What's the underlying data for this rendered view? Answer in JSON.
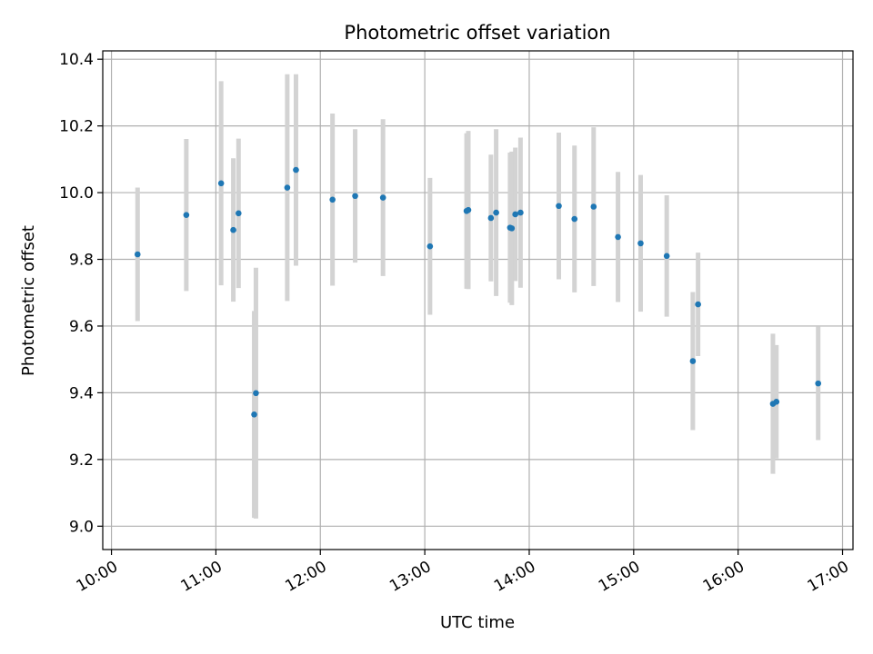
{
  "chart_data": {
    "type": "scatter",
    "title": "Photometric offset variation",
    "xlabel": "UTC time",
    "ylabel": "Photometric offset",
    "x_ticks": [
      "10:00",
      "11:00",
      "12:00",
      "13:00",
      "14:00",
      "15:00",
      "16:00",
      "17:00"
    ],
    "y_ticks": [
      "9.0",
      "9.2",
      "9.4",
      "9.6",
      "9.8",
      "10.0",
      "10.2",
      "10.4"
    ],
    "xlim": [
      "09:55",
      "17:06"
    ],
    "ylim": [
      8.93,
      10.425
    ],
    "grid": true,
    "marker_color": "#1f77b4",
    "errorbar_color": "#d3d3d3",
    "points": [
      {
        "x": "10:15",
        "y": 9.815,
        "yerr": 0.2
      },
      {
        "x": "10:43",
        "y": 9.933,
        "yerr": 0.228
      },
      {
        "x": "11:03",
        "y": 10.028,
        "yerr": 0.306
      },
      {
        "x": "11:10",
        "y": 9.888,
        "yerr": 0.215
      },
      {
        "x": "11:13",
        "y": 9.938,
        "yerr": 0.224
      },
      {
        "x": "11:22",
        "y": 9.335,
        "yerr": 0.31
      },
      {
        "x": "11:23",
        "y": 9.399,
        "yerr": 0.376
      },
      {
        "x": "11:41",
        "y": 10.015,
        "yerr": 0.34
      },
      {
        "x": "11:46",
        "y": 10.068,
        "yerr": 0.287
      },
      {
        "x": "12:07",
        "y": 9.979,
        "yerr": 0.258
      },
      {
        "x": "12:20",
        "y": 9.99,
        "yerr": 0.2
      },
      {
        "x": "12:36",
        "y": 9.985,
        "yerr": 0.235
      },
      {
        "x": "13:03",
        "y": 9.839,
        "yerr": 0.205
      },
      {
        "x": "13:24",
        "y": 9.945,
        "yerr": 0.233
      },
      {
        "x": "13:25",
        "y": 9.948,
        "yerr": 0.237
      },
      {
        "x": "13:38",
        "y": 9.924,
        "yerr": 0.19
      },
      {
        "x": "13:41",
        "y": 9.94,
        "yerr": 0.25
      },
      {
        "x": "13:49",
        "y": 9.895,
        "yerr": 0.225
      },
      {
        "x": "13:50",
        "y": 9.893,
        "yerr": 0.23
      },
      {
        "x": "13:52",
        "y": 9.935,
        "yerr": 0.2
      },
      {
        "x": "13:55",
        "y": 9.94,
        "yerr": 0.225
      },
      {
        "x": "14:17",
        "y": 9.96,
        "yerr": 0.22
      },
      {
        "x": "14:26",
        "y": 9.921,
        "yerr": 0.22
      },
      {
        "x": "14:37",
        "y": 9.958,
        "yerr": 0.238
      },
      {
        "x": "14:51",
        "y": 9.867,
        "yerr": 0.195
      },
      {
        "x": "15:04",
        "y": 9.848,
        "yerr": 0.205
      },
      {
        "x": "15:19",
        "y": 9.81,
        "yerr": 0.182
      },
      {
        "x": "15:34",
        "y": 9.495,
        "yerr": 0.207
      },
      {
        "x": "15:37",
        "y": 9.665,
        "yerr": 0.155
      },
      {
        "x": "16:20",
        "y": 9.367,
        "yerr": 0.21
      },
      {
        "x": "16:22",
        "y": 9.373,
        "yerr": 0.17
      },
      {
        "x": "16:46",
        "y": 9.428,
        "yerr": 0.17
      }
    ]
  }
}
